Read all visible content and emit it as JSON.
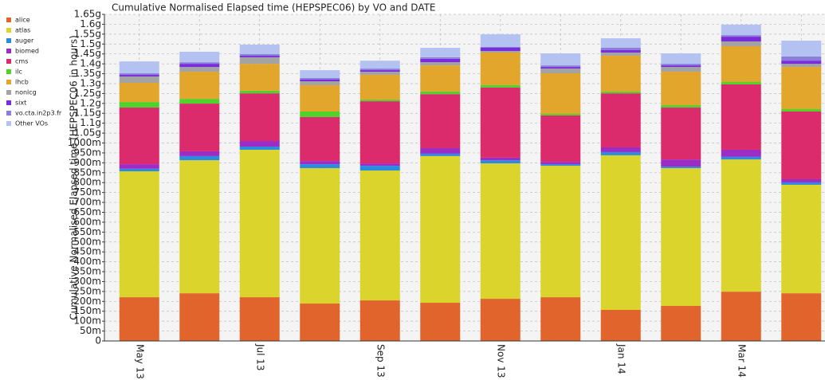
{
  "chart_data": {
    "type": "stacked-bar",
    "title": "Cumulative Normalised Elapsed time (HEPSPEC06) by VO and DATE",
    "y_label": "Cumulative Normalised Elapsed time (HEPSPEC06 in hours)",
    "categories": [
      "May 13",
      null,
      "Jul 13",
      null,
      "Sep 13",
      null,
      "Nov 13",
      null,
      "Jan 14",
      null,
      "Mar 14",
      null
    ],
    "series": [
      {
        "name": "alice",
        "color": "#e0642b",
        "values": [
          221000000,
          241000000,
          221000000,
          189000000,
          205000000,
          193000000,
          213000000,
          221000000,
          157000000,
          177000000,
          249000000,
          241000000
        ]
      },
      {
        "name": "atlas",
        "color": "#dbd42c",
        "values": [
          636000000,
          672000000,
          745000000,
          684000000,
          656000000,
          741000000,
          684000000,
          664000000,
          781000000,
          696000000,
          668000000,
          548000000
        ]
      },
      {
        "name": "auger",
        "color": "#2b8bdc",
        "values": [
          13000000,
          21000000,
          16000000,
          20000000,
          24000000,
          12000000,
          16000000,
          8000000,
          16000000,
          8000000,
          13000000,
          12000000
        ]
      },
      {
        "name": "biomed",
        "color": "#9d2bc6",
        "values": [
          23000000,
          24000000,
          28000000,
          16000000,
          12000000,
          28000000,
          13000000,
          12000000,
          24000000,
          36000000,
          36000000,
          16000000
        ]
      },
      {
        "name": "cms",
        "color": "#dc2b6c",
        "values": [
          286000000,
          241000000,
          241000000,
          222000000,
          314000000,
          273000000,
          354000000,
          234000000,
          273000000,
          262000000,
          330000000,
          342000000
        ]
      },
      {
        "name": "ilc",
        "color": "#4fd22b",
        "values": [
          28000000,
          24000000,
          13000000,
          28000000,
          8000000,
          13000000,
          12000000,
          8000000,
          9000000,
          12000000,
          12000000,
          12000000
        ]
      },
      {
        "name": "lhcb",
        "color": "#e2a62c",
        "values": [
          97000000,
          137000000,
          136000000,
          133000000,
          125000000,
          132000000,
          165000000,
          205000000,
          181000000,
          169000000,
          181000000,
          213000000
        ]
      },
      {
        "name": "nonlcg",
        "color": "#a3a3a3",
        "values": [
          32000000,
          24000000,
          33000000,
          20000000,
          16000000,
          16000000,
          8000000,
          24000000,
          16000000,
          24000000,
          24000000,
          16000000
        ]
      },
      {
        "name": "sixt",
        "color": "#7a2bda",
        "values": [
          8000000,
          16000000,
          8000000,
          8000000,
          8000000,
          17000000,
          16000000,
          8000000,
          12000000,
          8000000,
          24000000,
          16000000
        ]
      },
      {
        "name": "vo.cta.in2p3.fr",
        "color": "#8a7ed8",
        "values": [
          8000000,
          8000000,
          8000000,
          8000000,
          8000000,
          8000000,
          4000000,
          8000000,
          12000000,
          8000000,
          8000000,
          21000000
        ]
      },
      {
        "name": "Other VOs",
        "color": "#b4c2f2",
        "values": [
          60000000,
          53000000,
          48000000,
          40000000,
          40000000,
          48000000,
          64000000,
          61000000,
          48000000,
          53000000,
          53000000,
          80000000
        ]
      }
    ],
    "ylim": [
      0,
      1650000000
    ],
    "yticks": [
      0,
      {
        "value": 50000000,
        "label": "50m"
      },
      {
        "value": 100000000,
        "label": "100m"
      },
      {
        "value": 150000000,
        "label": "150m"
      },
      {
        "value": 200000000,
        "label": "200m"
      },
      {
        "value": 250000000,
        "label": "250m"
      },
      {
        "value": 300000000,
        "label": "300m"
      },
      {
        "value": 350000000,
        "label": "350m"
      },
      {
        "value": 400000000,
        "label": "400m"
      },
      {
        "value": 450000000,
        "label": "450m"
      },
      {
        "value": 500000000,
        "label": "500m"
      },
      {
        "value": 550000000,
        "label": "550m"
      },
      {
        "value": 600000000,
        "label": "600m"
      },
      {
        "value": 650000000,
        "label": "650m"
      },
      {
        "value": 700000000,
        "label": "700m"
      },
      {
        "value": 750000000,
        "label": "750m"
      },
      {
        "value": 800000000,
        "label": "800m"
      },
      {
        "value": 850000000,
        "label": "850m"
      },
      {
        "value": 900000000,
        "label": "900m"
      },
      {
        "value": 950000000,
        "label": "950m"
      },
      {
        "value": 1000000000,
        "label": "1000m"
      },
      {
        "value": 1050000000,
        "label": "1.05g"
      },
      {
        "value": 1100000000,
        "label": "1.1g"
      },
      {
        "value": 1150000000,
        "label": "1.15g"
      },
      {
        "value": 1200000000,
        "label": "1.2g"
      },
      {
        "value": 1250000000,
        "label": "1.25g"
      },
      {
        "value": 1300000000,
        "label": "1.3g"
      },
      {
        "value": 1350000000,
        "label": "1.35g"
      },
      {
        "value": 1400000000,
        "label": "1.4g"
      },
      {
        "value": 1450000000,
        "label": "1.45g"
      },
      {
        "value": 1500000000,
        "label": "1.5g"
      },
      {
        "value": 1550000000,
        "label": "1.55g"
      },
      {
        "value": 1600000000,
        "label": "1.6g"
      },
      {
        "value": 1650000000,
        "label": "1.65g"
      }
    ],
    "grid": true,
    "legend": "left"
  }
}
